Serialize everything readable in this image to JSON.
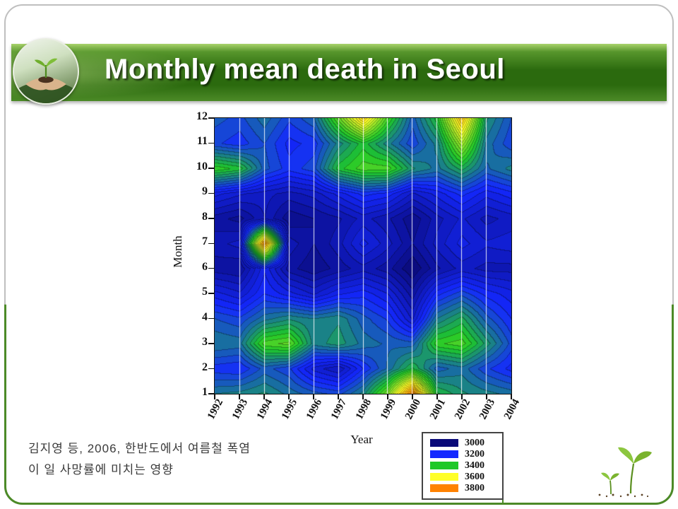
{
  "slide": {
    "title": "Monthly mean death in Seoul",
    "citation_line1": "김지영 등, 2006, 한반도에서 여름철 폭염",
    "citation_line2": "이 일 사망률에 미치는 영향",
    "colors": {
      "header_green_dark": "#2b6a0e",
      "header_green_light": "#a9d36c",
      "frame_green": "#4c8a27"
    }
  },
  "chart_data": {
    "type": "heatmap",
    "title": "Monthly mean death in Seoul",
    "xlabel": "Year",
    "ylabel": "Month",
    "x": [
      1992,
      1993,
      1994,
      1995,
      1996,
      1997,
      1998,
      1999,
      2000,
      2001,
      2002,
      2003,
      2004
    ],
    "y": [
      1,
      2,
      3,
      4,
      5,
      6,
      7,
      8,
      9,
      10,
      11,
      12
    ],
    "x_labels": [
      "1992",
      "1993",
      "1994",
      "1995",
      "1996",
      "1997",
      "1998",
      "1999",
      "2000",
      "2001",
      "2002",
      "2003",
      "2004"
    ],
    "y_labels": [
      "12",
      "11",
      "10",
      "9",
      "8",
      "7",
      "6",
      "5",
      "4",
      "3",
      "2",
      "1"
    ],
    "value_min": 3000,
    "value_max": 3800,
    "values_note": "rows are months 1 (bottom) to 12 (top), columns are years 1992-2004, approx monthly mean deaths",
    "values": [
      [
        3300,
        3310,
        3330,
        3290,
        3260,
        3240,
        3310,
        3480,
        3800,
        3380,
        3330,
        3310,
        3290
      ],
      [
        3210,
        3200,
        3260,
        3230,
        3140,
        3100,
        3200,
        3280,
        3380,
        3260,
        3290,
        3230,
        3190
      ],
      [
        3300,
        3290,
        3440,
        3460,
        3310,
        3340,
        3290,
        3270,
        3260,
        3420,
        3440,
        3340,
        3240
      ],
      [
        3250,
        3230,
        3290,
        3320,
        3300,
        3320,
        3260,
        3220,
        3120,
        3300,
        3360,
        3260,
        3200
      ],
      [
        3160,
        3130,
        3200,
        3160,
        3120,
        3170,
        3190,
        3150,
        3060,
        3190,
        3240,
        3190,
        3160
      ],
      [
        3060,
        3050,
        3170,
        3060,
        3030,
        3060,
        3090,
        3060,
        3000,
        3070,
        3110,
        3090,
        3090
      ],
      [
        3090,
        3110,
        3780,
        3090,
        3050,
        3090,
        3160,
        3110,
        3050,
        3110,
        3160,
        3130,
        3140
      ],
      [
        3060,
        3040,
        3100,
        3030,
        3050,
        3070,
        3110,
        3080,
        3030,
        3090,
        3130,
        3090,
        3110
      ],
      [
        3160,
        3130,
        3110,
        3090,
        3110,
        3160,
        3210,
        3190,
        3120,
        3160,
        3210,
        3160,
        3190
      ],
      [
        3420,
        3390,
        3260,
        3210,
        3240,
        3390,
        3440,
        3440,
        3330,
        3290,
        3360,
        3270,
        3310
      ],
      [
        3230,
        3210,
        3250,
        3190,
        3210,
        3310,
        3390,
        3310,
        3230,
        3310,
        3520,
        3290,
        3230
      ],
      [
        3260,
        3240,
        3290,
        3230,
        3270,
        3460,
        3660,
        3430,
        3260,
        3390,
        3690,
        3330,
        3250
      ]
    ],
    "colormap_anchors": [
      {
        "value": 3000,
        "color": "#0a0a78"
      },
      {
        "value": 3200,
        "color": "#1428ff"
      },
      {
        "value": 3400,
        "color": "#1ec828"
      },
      {
        "value": 3600,
        "color": "#ffff28"
      },
      {
        "value": 3800,
        "color": "#ff8200"
      }
    ],
    "legend": [
      {
        "label": "3000",
        "color": "#0a0a78"
      },
      {
        "label": "3200",
        "color": "#1428ff"
      },
      {
        "label": "3400",
        "color": "#1ec828"
      },
      {
        "label": "3600",
        "color": "#ffff28"
      },
      {
        "label": "3800",
        "color": "#ff8200"
      }
    ],
    "legend_position": "bottom-right",
    "grid": "white vertical lines at each year"
  }
}
